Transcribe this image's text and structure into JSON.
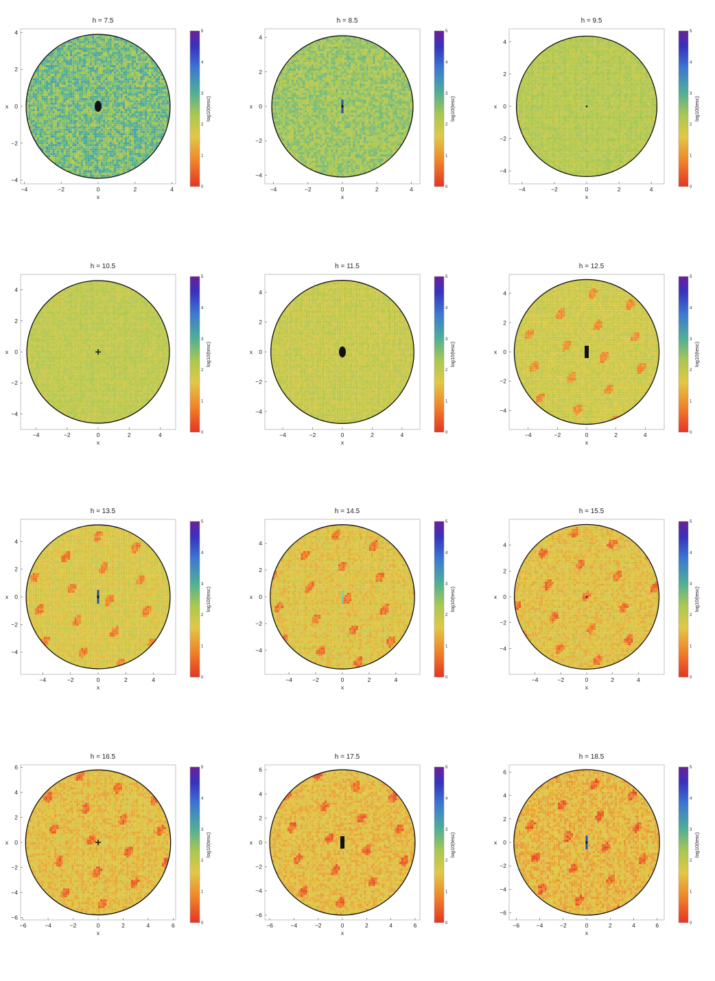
{
  "chart_data": [
    {
      "type": "heatmap",
      "title": "h = 7.5",
      "xlabel": "x",
      "ylabel": "x",
      "xticks": [
        "-4",
        "-2",
        "0",
        "2",
        "4"
      ],
      "yticks": [
        "-4",
        "-2",
        "0",
        "2",
        "4"
      ],
      "xlim": [
        -4.2,
        4.2
      ],
      "ylim": [
        -4.2,
        4.2
      ],
      "radius": 3.9,
      "colorbar": {
        "label": "log10(tesc)",
        "ticks": [
          "0",
          "1",
          "2",
          "3",
          "4",
          "5"
        ],
        "range": [
          0,
          5
        ]
      },
      "base_level": 2.7,
      "noise": 0.55,
      "center_feature": "dark-blob",
      "features": []
    },
    {
      "type": "heatmap",
      "title": "h = 8.5",
      "xlabel": "x",
      "ylabel": "x",
      "xticks": [
        "-4",
        "-2",
        "0",
        "2",
        "4"
      ],
      "yticks": [
        "-4",
        "-2",
        "0",
        "2",
        "4"
      ],
      "xlim": [
        -4.5,
        4.5
      ],
      "ylim": [
        -4.5,
        4.5
      ],
      "radius": 4.1,
      "colorbar": {
        "label": "log10(tesc)",
        "ticks": [
          "0",
          "1",
          "2",
          "3",
          "4",
          "5"
        ],
        "range": [
          0,
          5
        ]
      },
      "base_level": 2.4,
      "noise": 0.4,
      "center_feature": "vertical-bar",
      "features": []
    },
    {
      "type": "heatmap",
      "title": "h = 9.5",
      "xlabel": "x",
      "ylabel": "x",
      "xticks": [
        "-4",
        "-2",
        "0",
        "2",
        "4"
      ],
      "yticks": [
        "-4",
        "-2",
        "0",
        "2",
        "4"
      ],
      "xlim": [
        -4.8,
        4.8
      ],
      "ylim": [
        -4.8,
        4.8
      ],
      "radius": 4.35,
      "colorbar": {
        "label": "log10(tesc)",
        "ticks": [
          "0",
          "1",
          "2",
          "3",
          "4",
          "5"
        ],
        "range": [
          0,
          5
        ]
      },
      "base_level": 2.15,
      "noise": 0.25,
      "center_feature": "dot",
      "features": []
    },
    {
      "type": "heatmap",
      "title": "h = 10.5",
      "xlabel": "x",
      "ylabel": "x",
      "xticks": [
        "-4",
        "-2",
        "0",
        "2",
        "4"
      ],
      "yticks": [
        "-4",
        "-2",
        "0",
        "2",
        "4"
      ],
      "xlim": [
        -5.0,
        5.0
      ],
      "ylim": [
        -5.0,
        5.0
      ],
      "radius": 4.6,
      "colorbar": {
        "label": "log10(tesc)",
        "ticks": [
          "0",
          "1",
          "2",
          "3",
          "4",
          "5"
        ],
        "range": [
          0,
          5
        ]
      },
      "base_level": 2.05,
      "noise": 0.25,
      "center_feature": "cross",
      "features": []
    },
    {
      "type": "heatmap",
      "title": "h = 11.5",
      "xlabel": "x",
      "ylabel": "x",
      "xticks": [
        "-4",
        "-2",
        "0",
        "2",
        "4"
      ],
      "yticks": [
        "-4",
        "-2",
        "0",
        "2",
        "4"
      ],
      "xlim": [
        -5.2,
        5.2
      ],
      "ylim": [
        -5.2,
        5.2
      ],
      "radius": 4.8,
      "colorbar": {
        "label": "log10(tesc)",
        "ticks": [
          "0",
          "1",
          "2",
          "3",
          "4",
          "5"
        ],
        "range": [
          0,
          5
        ]
      },
      "base_level": 1.95,
      "noise": 0.25,
      "center_feature": "dark-blob",
      "features": []
    },
    {
      "type": "heatmap",
      "title": "h = 12.5",
      "xlabel": "x",
      "ylabel": "x",
      "xticks": [
        "-4",
        "-2",
        "0",
        "2",
        "4"
      ],
      "yticks": [
        "-4",
        "-2",
        "0",
        "2",
        "4"
      ],
      "xlim": [
        -5.3,
        5.3
      ],
      "ylim": [
        -5.3,
        5.3
      ],
      "radius": 4.95,
      "colorbar": {
        "label": "log10(tesc)",
        "ticks": [
          "0",
          "1",
          "2",
          "3",
          "4",
          "5"
        ],
        "range": [
          0,
          5
        ]
      },
      "base_level": 1.85,
      "noise": 0.25,
      "center_feature": "dark-bar",
      "features": []
    },
    {
      "type": "heatmap",
      "title": "h = 13.5",
      "xlabel": "x",
      "ylabel": "x",
      "xticks": [
        "-4",
        "-2",
        "0",
        "2",
        "4"
      ],
      "yticks": [
        "-4",
        "-2",
        "0",
        "2",
        "4"
      ],
      "xlim": [
        -5.6,
        5.6
      ],
      "ylim": [
        -5.6,
        5.6
      ],
      "radius": 5.2,
      "colorbar": {
        "label": "log10(tesc)",
        "ticks": [
          "0",
          "1",
          "2",
          "3",
          "4",
          "5"
        ],
        "range": [
          0,
          5
        ]
      },
      "base_level": 1.7,
      "noise": 0.3,
      "center_feature": "vertical-bar",
      "features": []
    },
    {
      "type": "heatmap",
      "title": "h = 14.5",
      "xlabel": "x",
      "ylabel": "x",
      "xticks": [
        "-4",
        "-2",
        "0",
        "2",
        "4"
      ],
      "yticks": [
        "-4",
        "-2",
        "0",
        "2",
        "4"
      ],
      "xlim": [
        -5.8,
        5.8
      ],
      "ylim": [
        -5.8,
        5.8
      ],
      "radius": 5.4,
      "colorbar": {
        "label": "log10(tesc)",
        "ticks": [
          "0",
          "1",
          "2",
          "3",
          "4",
          "5"
        ],
        "range": [
          0,
          5
        ]
      },
      "base_level": 1.6,
      "noise": 0.35,
      "center_feature": "faint",
      "features": []
    },
    {
      "type": "heatmap",
      "title": "h = 15.5",
      "xlabel": "x",
      "ylabel": "x",
      "xticks": [
        "-4",
        "-2",
        "0",
        "2",
        "4"
      ],
      "yticks": [
        "-4",
        "-2",
        "0",
        "2",
        "4"
      ],
      "xlim": [
        -6.0,
        6.0
      ],
      "ylim": [
        -6.0,
        6.0
      ],
      "radius": 5.6,
      "colorbar": {
        "label": "log10(tesc)",
        "ticks": [
          "0",
          "1",
          "2",
          "3",
          "4",
          "5"
        ],
        "range": [
          0,
          5
        ]
      },
      "base_level": 1.55,
      "noise": 0.35,
      "center_feature": "dot",
      "features": []
    },
    {
      "type": "heatmap",
      "title": "h = 16.5",
      "xlabel": "x",
      "ylabel": "x",
      "xticks": [
        "-6",
        "-4",
        "-2",
        "0",
        "2",
        "4",
        "6"
      ],
      "yticks": [
        "-6",
        "-4",
        "-2",
        "0",
        "2",
        "4",
        "6"
      ],
      "xlim": [
        -6.2,
        6.2
      ],
      "ylim": [
        -6.2,
        6.2
      ],
      "radius": 5.8,
      "colorbar": {
        "label": "log10(tesc)",
        "ticks": [
          "0",
          "1",
          "2",
          "3",
          "4",
          "5"
        ],
        "range": [
          0,
          5
        ]
      },
      "base_level": 1.5,
      "noise": 0.35,
      "center_feature": "cross",
      "features": []
    },
    {
      "type": "heatmap",
      "title": "h = 17.5",
      "xlabel": "x",
      "ylabel": "x",
      "xticks": [
        "-6",
        "-4",
        "-2",
        "0",
        "2",
        "4",
        "6"
      ],
      "yticks": [
        "-6",
        "-4",
        "-2",
        "0",
        "2",
        "4",
        "6"
      ],
      "xlim": [
        -6.4,
        6.4
      ],
      "ylim": [
        -6.4,
        6.4
      ],
      "radius": 6.0,
      "colorbar": {
        "label": "log10(tesc)",
        "ticks": [
          "0",
          "1",
          "2",
          "3",
          "4",
          "5"
        ],
        "range": [
          0,
          5
        ]
      },
      "base_level": 1.45,
      "noise": 0.35,
      "center_feature": "dark-bar",
      "features": []
    },
    {
      "type": "heatmap",
      "title": "h = 18.5",
      "xlabel": "x",
      "ylabel": "x",
      "xticks": [
        "-6",
        "-4",
        "-2",
        "0",
        "2",
        "4",
        "6"
      ],
      "yticks": [
        "-6",
        "-4",
        "-2",
        "0",
        "2",
        "4",
        "6"
      ],
      "xlim": [
        -6.6,
        6.6
      ],
      "ylim": [
        -6.6,
        6.6
      ],
      "radius": 6.2,
      "colorbar": {
        "label": "log10(tesc)",
        "ticks": [
          "0",
          "1",
          "2",
          "3",
          "4",
          "5"
        ],
        "range": [
          0,
          5
        ]
      },
      "base_level": 1.4,
      "noise": 0.4,
      "center_feature": "vertical-bar",
      "features": []
    }
  ]
}
